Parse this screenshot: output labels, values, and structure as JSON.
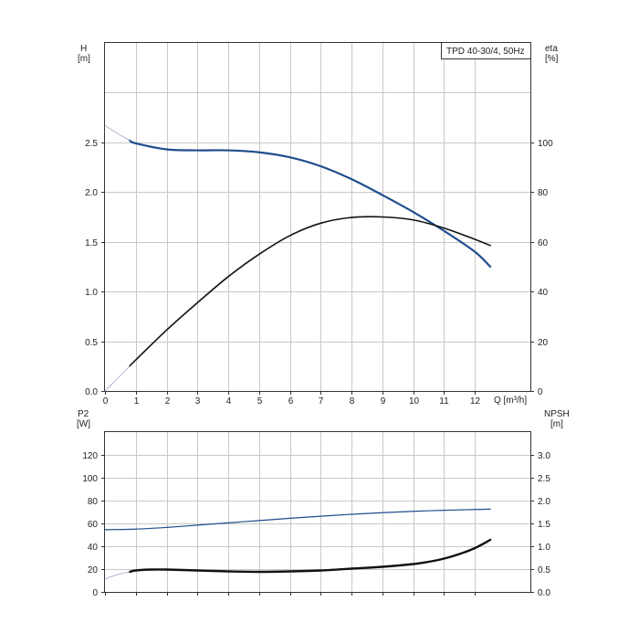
{
  "chart_data": [
    {
      "type": "line",
      "title": "TPD 40-30/4, 50Hz",
      "xlabel": "Q [m³/h]",
      "xlim": [
        0,
        13.8
      ],
      "x_ticks": [
        0,
        1,
        2,
        3,
        4,
        5,
        6,
        7,
        8,
        9,
        10,
        11,
        12
      ],
      "y_left": {
        "label_top": "H",
        "label_unit": "[m]",
        "lim": [
          0,
          3.5
        ],
        "ticks": [
          0,
          0.5,
          1.0,
          1.5,
          2.0,
          2.5
        ],
        "tick_labels": [
          "0.0",
          "0.5",
          "1.0",
          "1.5",
          "2.0",
          "2.5"
        ]
      },
      "y_right": {
        "label_top": "eta",
        "label_unit": "[%]",
        "lim": [
          0,
          140
        ],
        "ticks": [
          0,
          20,
          40,
          60,
          80,
          100
        ],
        "tick_labels": [
          "0",
          "20",
          "40",
          "60",
          "80",
          "100"
        ]
      },
      "grid": true,
      "series": [
        {
          "axis": "left",
          "color": "#1f4e8c",
          "width": 2.2,
          "x": [
            0.8,
            1,
            2,
            3,
            4,
            5,
            6,
            7,
            8,
            9,
            10,
            11,
            12,
            12.5
          ],
          "y": [
            2.52,
            2.49,
            2.43,
            2.42,
            2.42,
            2.4,
            2.35,
            2.26,
            2.13,
            1.97,
            1.8,
            1.61,
            1.4,
            1.25
          ]
        },
        {
          "axis": "left",
          "color": "#9aa6c2",
          "width": 0.8,
          "x": [
            0,
            0.4,
            0.8
          ],
          "y": [
            2.67,
            2.59,
            2.52
          ]
        },
        {
          "axis": "right",
          "color": "#111111",
          "width": 1.6,
          "x": [
            0.8,
            1,
            2,
            3,
            4,
            5,
            6,
            7,
            8,
            9,
            10,
            11,
            12,
            12.5
          ],
          "y": [
            10,
            12.5,
            24.5,
            35.5,
            46,
            55,
            62.5,
            67.5,
            69.8,
            70,
            68.8,
            65.5,
            61,
            58.5
          ]
        },
        {
          "axis": "right",
          "color": "#9aa6c2",
          "width": 0.8,
          "x": [
            0,
            0.4,
            0.8
          ],
          "y": [
            0,
            5,
            10
          ]
        }
      ]
    },
    {
      "type": "line",
      "xlim": [
        0,
        13.8
      ],
      "x_ticks": [
        0,
        1,
        2,
        3,
        4,
        5,
        6,
        7,
        8,
        9,
        10,
        11,
        12
      ],
      "y_left": {
        "label_top": "P2",
        "label_unit": "[W]",
        "lim": [
          0,
          140
        ],
        "ticks": [
          0,
          20,
          40,
          60,
          80,
          100,
          120
        ],
        "tick_labels": [
          "0",
          "20",
          "40",
          "60",
          "80",
          "100",
          "120"
        ]
      },
      "y_right": {
        "label_top": "NPSH",
        "label_unit": "[m]",
        "lim": [
          0,
          3.5
        ],
        "ticks": [
          0,
          0.5,
          1.0,
          1.5,
          2.0,
          2.5,
          3.0
        ],
        "tick_labels": [
          "0.0",
          "0.5",
          "1.0",
          "1.5",
          "2.0",
          "2.5",
          "3.0"
        ]
      },
      "grid": true,
      "series": [
        {
          "axis": "left",
          "color": "#1f4e8c",
          "width": 1.2,
          "x": [
            0,
            1,
            2,
            3,
            4,
            5,
            6,
            7,
            8,
            9,
            10,
            11,
            12,
            12.5
          ],
          "y": [
            54.5,
            55,
            56.5,
            58.5,
            60.5,
            62.5,
            64.5,
            66.3,
            68,
            69.4,
            70.6,
            71.5,
            72.2,
            72.5
          ]
        },
        {
          "axis": "right",
          "color": "#111111",
          "width": 2.4,
          "x": [
            0.8,
            1,
            1.5,
            2,
            3,
            4,
            5,
            6,
            7,
            8,
            9,
            10,
            10.5,
            11,
            11.5,
            12,
            12.5
          ],
          "y": [
            0.44,
            0.47,
            0.49,
            0.49,
            0.47,
            0.45,
            0.44,
            0.45,
            0.47,
            0.51,
            0.55,
            0.61,
            0.66,
            0.73,
            0.83,
            0.96,
            1.14
          ]
        },
        {
          "axis": "right",
          "color": "#9aa6c2",
          "width": 0.8,
          "x": [
            0,
            0.4,
            0.8
          ],
          "y": [
            0.28,
            0.38,
            0.44
          ]
        }
      ]
    }
  ]
}
